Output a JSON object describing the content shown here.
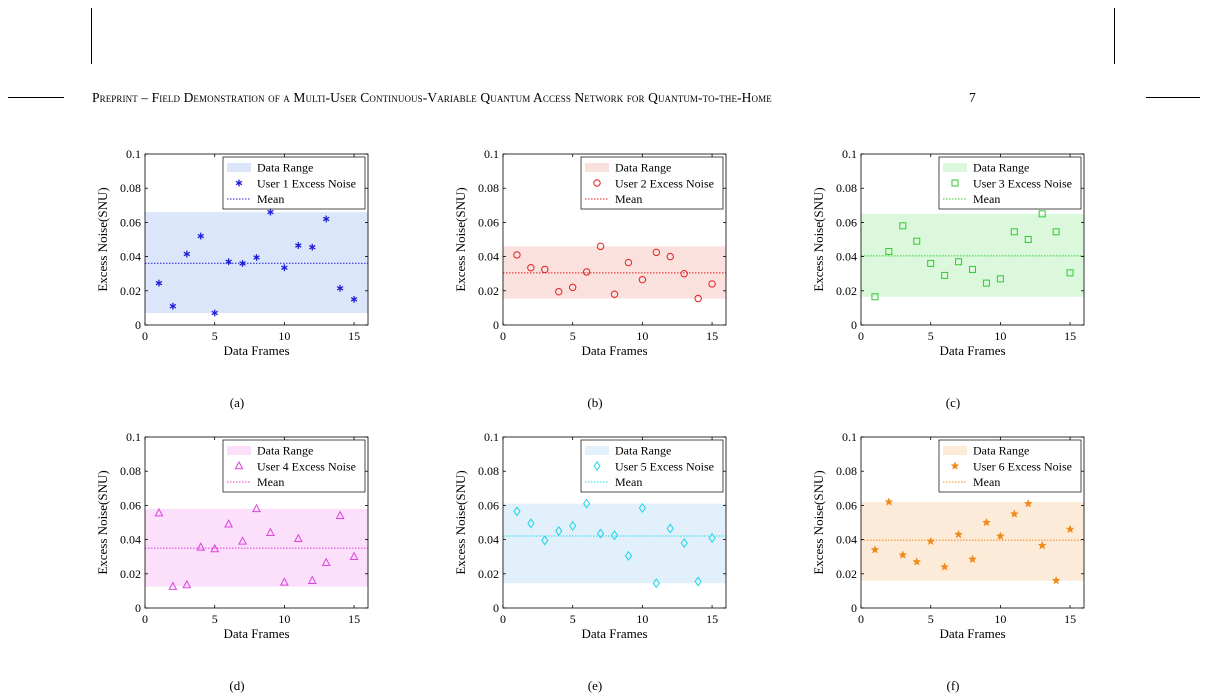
{
  "header": {
    "text": "Preprint – Field Demonstration of a Multi-User Continuous-Variable Quantum Access Network for Quantum-to-the-Home",
    "page_number": "7"
  },
  "chart_data": [
    {
      "type": "scatter",
      "caption": "(a)",
      "color": "#1f1fd6",
      "band_color": "#dbe6fb",
      "marker": "asterisk",
      "xlabel": "Data Frames",
      "ylabel": "Excess Noise(SNU)",
      "xlim": [
        0,
        16
      ],
      "ylim": [
        0,
        0.1
      ],
      "xticks": [
        "0",
        "5",
        "10",
        "15"
      ],
      "yticks": [
        "0",
        "0.02",
        "0.04",
        "0.06",
        "0.08",
        "0.1"
      ],
      "legend": [
        "Data Range",
        "User 1 Excess Noise",
        "Mean"
      ],
      "legend_position": "top-right",
      "x": [
        1,
        2,
        3,
        4,
        5,
        6,
        7,
        8,
        9,
        10,
        11,
        12,
        13,
        14,
        15
      ],
      "values": [
        0.0245,
        0.011,
        0.0415,
        0.052,
        0.007,
        0.037,
        0.036,
        0.0395,
        0.066,
        0.0335,
        0.0465,
        0.0455,
        0.062,
        0.0215,
        0.015
      ],
      "mean": 0.0361,
      "range": [
        0.007,
        0.066
      ]
    },
    {
      "type": "scatter",
      "caption": "(b)",
      "color": "#e02020",
      "band_color": "#fbe1de",
      "marker": "circle",
      "xlabel": "Data Frames",
      "ylabel": "Excess Noise(SNU)",
      "xlim": [
        0,
        16
      ],
      "ylim": [
        0,
        0.1
      ],
      "xticks": [
        "0",
        "5",
        "10",
        "15"
      ],
      "yticks": [
        "0",
        "0.02",
        "0.04",
        "0.06",
        "0.08",
        "0.1"
      ],
      "legend": [
        "Data Range",
        "User 2 Excess Noise",
        "Mean"
      ],
      "legend_position": "top-right",
      "x": [
        1,
        2,
        3,
        4,
        5,
        6,
        7,
        8,
        9,
        10,
        11,
        12,
        13,
        14,
        15
      ],
      "values": [
        0.041,
        0.0335,
        0.0325,
        0.0195,
        0.022,
        0.031,
        0.046,
        0.018,
        0.0365,
        0.0265,
        0.0425,
        0.04,
        0.03,
        0.0155,
        0.024
      ],
      "mean": 0.0305,
      "range": [
        0.0155,
        0.046
      ]
    },
    {
      "type": "scatter",
      "caption": "(c)",
      "color": "#2ecc2e",
      "band_color": "#dcf8dc",
      "marker": "square",
      "xlabel": "Data Frames",
      "ylabel": "Excess Noise(SNU)",
      "xlim": [
        0,
        16
      ],
      "ylim": [
        0,
        0.1
      ],
      "xticks": [
        "0",
        "5",
        "10",
        "15"
      ],
      "yticks": [
        "0",
        "0.02",
        "0.04",
        "0.06",
        "0.08",
        "0.1"
      ],
      "legend": [
        "Data Range",
        "User 3 Excess Noise",
        "Mean"
      ],
      "legend_position": "top-right",
      "x": [
        1,
        2,
        3,
        4,
        5,
        6,
        7,
        8,
        9,
        10,
        11,
        12,
        13,
        14,
        15
      ],
      "values": [
        0.0165,
        0.043,
        0.058,
        0.049,
        0.036,
        0.029,
        0.037,
        0.0325,
        0.0245,
        0.027,
        0.0545,
        0.05,
        0.065,
        0.0545,
        0.0305
      ],
      "mean": 0.0404,
      "range": [
        0.0165,
        0.065
      ]
    },
    {
      "type": "scatter",
      "caption": "(d)",
      "color": "#e040e0",
      "band_color": "#fbdffb",
      "marker": "triangle",
      "xlabel": "Data Frames",
      "ylabel": "Excess Noise(SNU)",
      "xlim": [
        0,
        16
      ],
      "ylim": [
        0,
        0.1
      ],
      "xticks": [
        "0",
        "5",
        "10",
        "15"
      ],
      "yticks": [
        "0",
        "0.02",
        "0.04",
        "0.06",
        "0.08",
        "0.1"
      ],
      "legend": [
        "Data Range",
        "User 4 Excess Noise",
        "Mean"
      ],
      "legend_position": "top-right",
      "x": [
        1,
        2,
        3,
        4,
        5,
        6,
        7,
        8,
        9,
        10,
        11,
        12,
        13,
        14,
        15
      ],
      "values": [
        0.0555,
        0.0125,
        0.0135,
        0.0355,
        0.0345,
        0.049,
        0.039,
        0.058,
        0.044,
        0.015,
        0.0405,
        0.016,
        0.0265,
        0.054,
        0.03
      ],
      "mean": 0.035,
      "range": [
        0.0125,
        0.058
      ]
    },
    {
      "type": "scatter",
      "caption": "(e)",
      "color": "#1ad6e6",
      "band_color": "#e1f0fb",
      "marker": "diamond",
      "xlabel": "Data Frames",
      "ylabel": "Excess Noise(SNU)",
      "xlim": [
        0,
        16
      ],
      "ylim": [
        0,
        0.1
      ],
      "xticks": [
        "0",
        "5",
        "10",
        "15"
      ],
      "yticks": [
        "0",
        "0.02",
        "0.04",
        "0.06",
        "0.08",
        "0.1"
      ],
      "legend": [
        "Data Range",
        "User 5 Excess Noise",
        "Mean"
      ],
      "legend_position": "top-right",
      "x": [
        1,
        2,
        3,
        4,
        5,
        6,
        7,
        8,
        9,
        10,
        11,
        12,
        13,
        14,
        15
      ],
      "values": [
        0.0565,
        0.0495,
        0.0395,
        0.045,
        0.048,
        0.061,
        0.0435,
        0.0425,
        0.0305,
        0.0585,
        0.0145,
        0.0465,
        0.038,
        0.0155,
        0.041
      ],
      "mean": 0.0421,
      "range": [
        0.0145,
        0.061
      ]
    },
    {
      "type": "scatter",
      "caption": "(f)",
      "color": "#f08a1a",
      "band_color": "#fcebd9",
      "marker": "star",
      "xlabel": "Data Frames",
      "ylabel": "Excess Noise(SNU)",
      "xlim": [
        0,
        16
      ],
      "ylim": [
        0,
        0.1
      ],
      "xticks": [
        "0",
        "5",
        "10",
        "15"
      ],
      "yticks": [
        "0",
        "0.02",
        "0.04",
        "0.06",
        "0.08",
        "0.1"
      ],
      "legend": [
        "Data Range",
        "User 6 Excess Noise",
        "Mean"
      ],
      "legend_position": "top-right",
      "x": [
        1,
        2,
        3,
        4,
        5,
        6,
        7,
        8,
        9,
        10,
        11,
        12,
        13,
        14,
        15
      ],
      "values": [
        0.034,
        0.062,
        0.031,
        0.027,
        0.039,
        0.024,
        0.043,
        0.0285,
        0.05,
        0.042,
        0.055,
        0.061,
        0.0365,
        0.016,
        0.046
      ],
      "mean": 0.0397,
      "range": [
        0.016,
        0.062
      ]
    }
  ]
}
